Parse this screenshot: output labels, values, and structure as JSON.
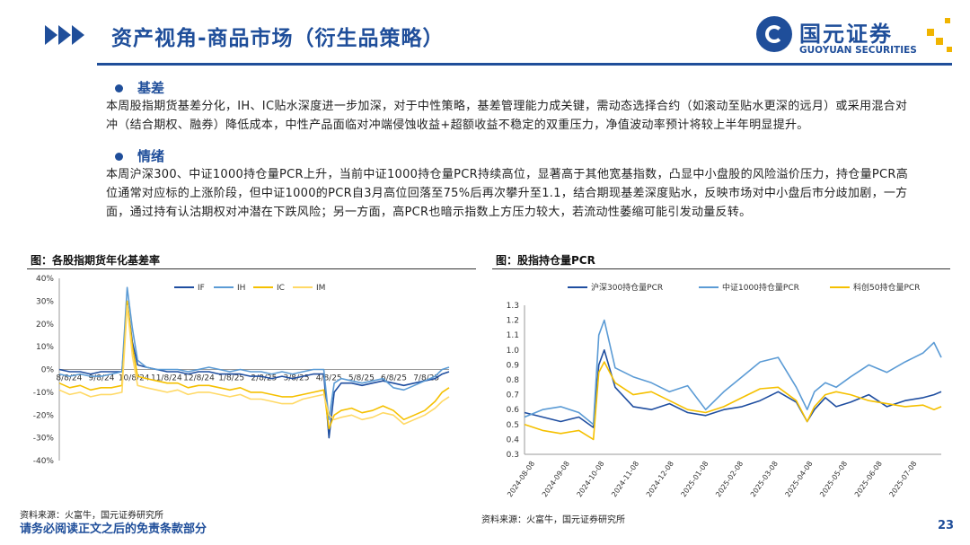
{
  "header": {
    "title": "资产视角-商品市场（衍生品策略）",
    "logo_cn": "国元证券",
    "logo_en": "GUOYUAN SECURITIES"
  },
  "sections": [
    {
      "heading": "基差",
      "body": "本周股指期货基差分化，IH、IC贴水深度进一步加深，对于中性策略，基差管理能力成关键，需动态选择合约（如滚动至贴水更深的远月）或采用混合对冲（结合期权、融券）降低成本，中性产品面临对冲端侵蚀收益+超额收益不稳定的双重压力，净值波动率预计将较上半年明显提升。"
    },
    {
      "heading": "情绪",
      "body": "本周沪深300、中证1000持仓量PCR上升，当前中证1000持仓量PCR持续高位，显著高于其他宽基指数，凸显中小盘股的风险溢价压力，持仓量PCR高位通常对应标的上涨阶段，但中证1000的PCR自3月高位回落至75%后再次攀升至1.1，结合期现基差深度贴水，反映市场对中小盘后市分歧加剧，一方面，通过持有认沽期权对冲潜在下跌风险；另一方面，高PCR也暗示指数上方压力较大，若流动性萎缩可能引发动量反转。"
    }
  ],
  "figures": {
    "left_title": "图：各股指期货年化基差率",
    "right_title": "图：股指持仓量PCR",
    "left_source": "资料来源：火富牛，国元证券研究所",
    "right_source": "资料来源：火富牛，国元证券研究所"
  },
  "footer": {
    "disclaimer": "请务必阅读正文之后的免责条款部分",
    "page": "23"
  },
  "colors": {
    "brand": "#1f4e9a",
    "accent": "#f0b400",
    "series_dark_blue": "#1f4ea0",
    "series_light_blue": "#5b9bd5",
    "series_yellow": "#f5c000",
    "series_light_yellow": "#ffd966"
  },
  "chart_data": [
    {
      "type": "line",
      "title": "",
      "ylim": [
        -40,
        40
      ],
      "y_ticks": [
        "40%",
        "30%",
        "20%",
        "10%",
        "0%",
        "-10%",
        "-20%",
        "-30%",
        "-40%"
      ],
      "x_ticks": [
        "8/8/24",
        "9/8/24",
        "10/8/24",
        "11/8/24",
        "12/8/24",
        "1/8/25",
        "2/8/25",
        "3/8/25",
        "4/8/25",
        "5/8/25",
        "6/8/25",
        "7/8/25"
      ],
      "x": [
        0,
        0.3,
        0.6,
        0.9,
        1.2,
        1.5,
        1.8,
        1.95,
        2.1,
        2.25,
        2.5,
        2.8,
        3.1,
        3.4,
        3.7,
        4,
        4.3,
        4.6,
        4.9,
        5.2,
        5.5,
        5.8,
        6.1,
        6.4,
        6.7,
        7,
        7.3,
        7.6,
        7.75,
        7.9,
        8.1,
        8.4,
        8.7,
        9,
        9.3,
        9.6,
        9.9,
        10.2,
        10.5,
        10.8,
        11,
        11.2
      ],
      "legend_position": "top",
      "grid": false,
      "series": [
        {
          "name": "IF",
          "values": [
            0,
            -1,
            -1,
            -2,
            -1,
            -1,
            -1,
            30,
            12,
            2,
            1,
            0,
            -1,
            -1,
            -2,
            -1,
            -1,
            -2,
            -2,
            -2,
            -3,
            -3,
            -4,
            -3,
            -4,
            -3,
            -2,
            -2,
            -30,
            -10,
            -6,
            -6,
            -7,
            -6,
            -5,
            -6,
            -7,
            -6,
            -5,
            -4,
            -2,
            -1
          ]
        },
        {
          "name": "IH",
          "values": [
            -2,
            -3,
            -2,
            -3,
            -3,
            -2,
            -1,
            36,
            18,
            4,
            1,
            0,
            0,
            0,
            -1,
            0,
            1,
            0,
            -1,
            0,
            -1,
            -1,
            -2,
            -1,
            -2,
            -1,
            0,
            0,
            -22,
            -6,
            -4,
            -5,
            -6,
            -5,
            -4,
            -8,
            -9,
            -7,
            -5,
            -3,
            0,
            1
          ]
        },
        {
          "name": "IC",
          "values": [
            -6,
            -8,
            -7,
            -9,
            -8,
            -8,
            -7,
            30,
            10,
            -3,
            -4,
            -5,
            -6,
            -6,
            -8,
            -7,
            -7,
            -8,
            -9,
            -8,
            -10,
            -10,
            -11,
            -12,
            -12,
            -11,
            -10,
            -9,
            -26,
            -20,
            -18,
            -17,
            -19,
            -18,
            -16,
            -18,
            -22,
            -20,
            -18,
            -14,
            -10,
            -8
          ]
        },
        {
          "name": "IM",
          "values": [
            -9,
            -11,
            -10,
            -12,
            -11,
            -11,
            -10,
            28,
            6,
            -7,
            -8,
            -9,
            -10,
            -9,
            -11,
            -10,
            -10,
            -11,
            -12,
            -11,
            -13,
            -13,
            -14,
            -15,
            -15,
            -13,
            -12,
            -11,
            -20,
            -22,
            -21,
            -20,
            -22,
            -21,
            -19,
            -20,
            -24,
            -22,
            -20,
            -17,
            -14,
            -12
          ]
        }
      ]
    },
    {
      "type": "line",
      "title": "",
      "ylim": [
        0.3,
        1.3
      ],
      "y_ticks": [
        "1.3",
        "1.2",
        "1.1",
        "1.0",
        "0.9",
        "0.8",
        "0.7",
        "0.6",
        "0.5",
        "0.4",
        "0.3"
      ],
      "x_ticks": [
        "2024-08-08",
        "2024-09-08",
        "2024-10-08",
        "2024-11-08",
        "2024-12-08",
        "2025-01-08",
        "2025-02-08",
        "2025-03-08",
        "2025-04-08",
        "2025-05-08",
        "2025-06-08",
        "2025-07-08"
      ],
      "x": [
        0,
        0.5,
        1,
        1.5,
        1.9,
        2.05,
        2.2,
        2.5,
        3,
        3.5,
        4,
        4.5,
        5,
        5.5,
        6,
        6.5,
        7,
        7.5,
        7.8,
        8,
        8.3,
        8.6,
        9,
        9.5,
        10,
        10.5,
        11,
        11.3,
        11.5
      ],
      "legend_position": "top",
      "grid": false,
      "series": [
        {
          "name": "沪深300持仓量PCR",
          "values": [
            0.58,
            0.55,
            0.52,
            0.55,
            0.48,
            0.9,
            1.0,
            0.75,
            0.62,
            0.6,
            0.64,
            0.58,
            0.56,
            0.6,
            0.62,
            0.66,
            0.72,
            0.65,
            0.52,
            0.6,
            0.68,
            0.62,
            0.65,
            0.7,
            0.62,
            0.66,
            0.68,
            0.7,
            0.72
          ]
        },
        {
          "name": "中证1000持仓量PCR",
          "values": [
            0.55,
            0.6,
            0.62,
            0.58,
            0.5,
            1.1,
            1.2,
            0.88,
            0.82,
            0.78,
            0.72,
            0.76,
            0.6,
            0.72,
            0.82,
            0.92,
            0.95,
            0.75,
            0.6,
            0.72,
            0.78,
            0.75,
            0.82,
            0.9,
            0.85,
            0.92,
            0.98,
            1.05,
            0.95
          ]
        },
        {
          "name": "科创50持仓量PCR",
          "values": [
            0.5,
            0.46,
            0.44,
            0.46,
            0.4,
            0.85,
            0.92,
            0.78,
            0.7,
            0.72,
            0.66,
            0.6,
            0.58,
            0.62,
            0.68,
            0.74,
            0.75,
            0.66,
            0.52,
            0.62,
            0.7,
            0.72,
            0.7,
            0.66,
            0.64,
            0.62,
            0.63,
            0.6,
            0.62
          ]
        }
      ]
    }
  ]
}
